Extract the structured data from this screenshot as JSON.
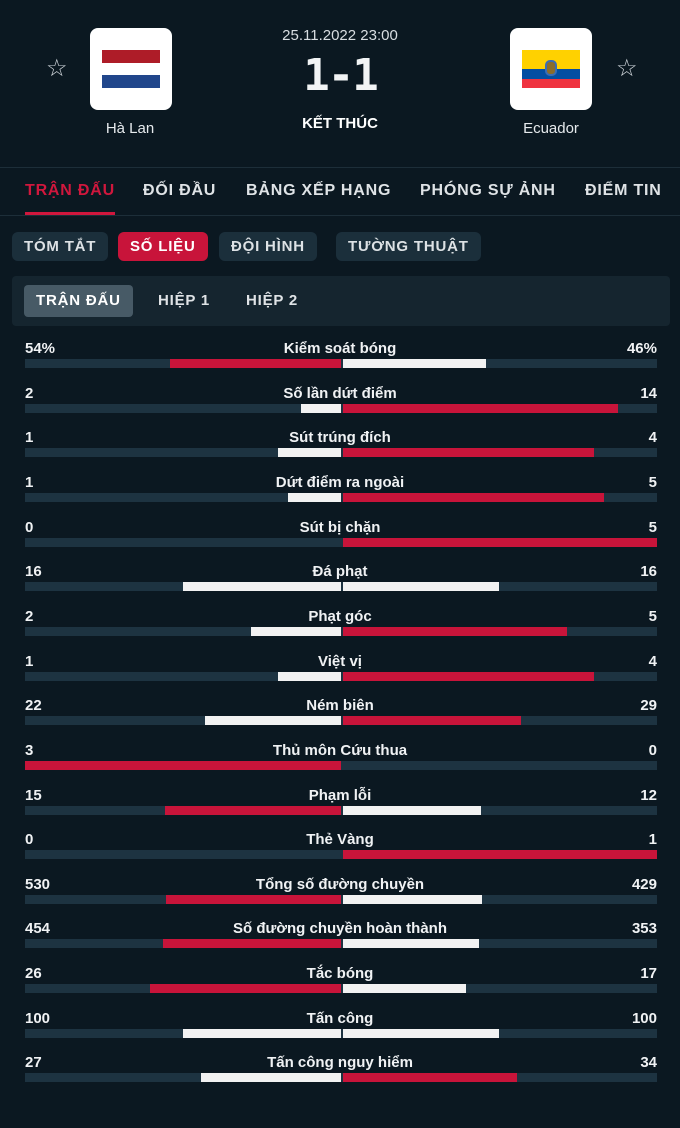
{
  "match": {
    "datetime": "25.11.2022 23:00",
    "score": "1-1",
    "status": "KẾT THÚC",
    "home": {
      "name": "Hà Lan",
      "flag": "netherlands-flag"
    },
    "away": {
      "name": "Ecuador",
      "flag": "ecuador-flag"
    },
    "star_glyph": "☆"
  },
  "tabs": [
    {
      "label": "TRẬN ĐẤU",
      "active": true
    },
    {
      "label": "ĐỐI ĐẦU",
      "active": false
    },
    {
      "label": "BẢNG XẾP HẠNG",
      "active": false
    },
    {
      "label": "PHÓNG SỰ ẢNH",
      "active": false
    },
    {
      "label": "ĐIỂM TIN",
      "active": false
    }
  ],
  "subtabs": [
    {
      "label": "TÓM TẮT",
      "active": false
    },
    {
      "label": "SỐ LIỆU",
      "active": true
    },
    {
      "label": "ĐỘI HÌNH",
      "active": false
    },
    {
      "label": "TƯỜNG THUẬT",
      "active": false
    }
  ],
  "periods": [
    {
      "label": "TRẬN ĐẤU",
      "active": true
    },
    {
      "label": "HIỆP 1",
      "active": false
    },
    {
      "label": "HIỆP 2",
      "active": false
    }
  ],
  "colors": {
    "accent": "#d0173d",
    "bar_red": "#c8143a",
    "bar_white": "#f2f2f2",
    "background": "#0b1821",
    "track": "#1d3341"
  },
  "stats": [
    {
      "label": "Kiểm soát bóng",
      "home": "54%",
      "away": "46%",
      "home_value": 54,
      "away_value": 46
    },
    {
      "label": "Số lần dứt điểm",
      "home": "2",
      "away": "14",
      "home_value": 2,
      "away_value": 14
    },
    {
      "label": "Sút trúng đích",
      "home": "1",
      "away": "4",
      "home_value": 1,
      "away_value": 4
    },
    {
      "label": "Dứt điểm ra ngoài",
      "home": "1",
      "away": "5",
      "home_value": 1,
      "away_value": 5
    },
    {
      "label": "Sút bị chặn",
      "home": "0",
      "away": "5",
      "home_value": 0,
      "away_value": 5
    },
    {
      "label": "Đá phạt",
      "home": "16",
      "away": "16",
      "home_value": 16,
      "away_value": 16
    },
    {
      "label": "Phạt góc",
      "home": "2",
      "away": "5",
      "home_value": 2,
      "away_value": 5
    },
    {
      "label": "Việt vị",
      "home": "1",
      "away": "4",
      "home_value": 1,
      "away_value": 4
    },
    {
      "label": "Ném biên",
      "home": "22",
      "away": "29",
      "home_value": 22,
      "away_value": 29
    },
    {
      "label": "Thủ môn Cứu thua",
      "home": "3",
      "away": "0",
      "home_value": 3,
      "away_value": 0
    },
    {
      "label": "Phạm lỗi",
      "home": "15",
      "away": "12",
      "home_value": 15,
      "away_value": 12
    },
    {
      "label": "Thẻ Vàng",
      "home": "0",
      "away": "1",
      "home_value": 0,
      "away_value": 1
    },
    {
      "label": "Tổng số đường chuyền",
      "home": "530",
      "away": "429",
      "home_value": 530,
      "away_value": 429
    },
    {
      "label": "Số đường chuyền hoàn thành",
      "home": "454",
      "away": "353",
      "home_value": 454,
      "away_value": 353
    },
    {
      "label": "Tắc bóng",
      "home": "26",
      "away": "17",
      "home_value": 26,
      "away_value": 17
    },
    {
      "label": "Tấn công",
      "home": "100",
      "away": "100",
      "home_value": 100,
      "away_value": 100
    },
    {
      "label": "Tấn công nguy hiểm",
      "home": "27",
      "away": "34",
      "home_value": 27,
      "away_value": 34
    }
  ]
}
